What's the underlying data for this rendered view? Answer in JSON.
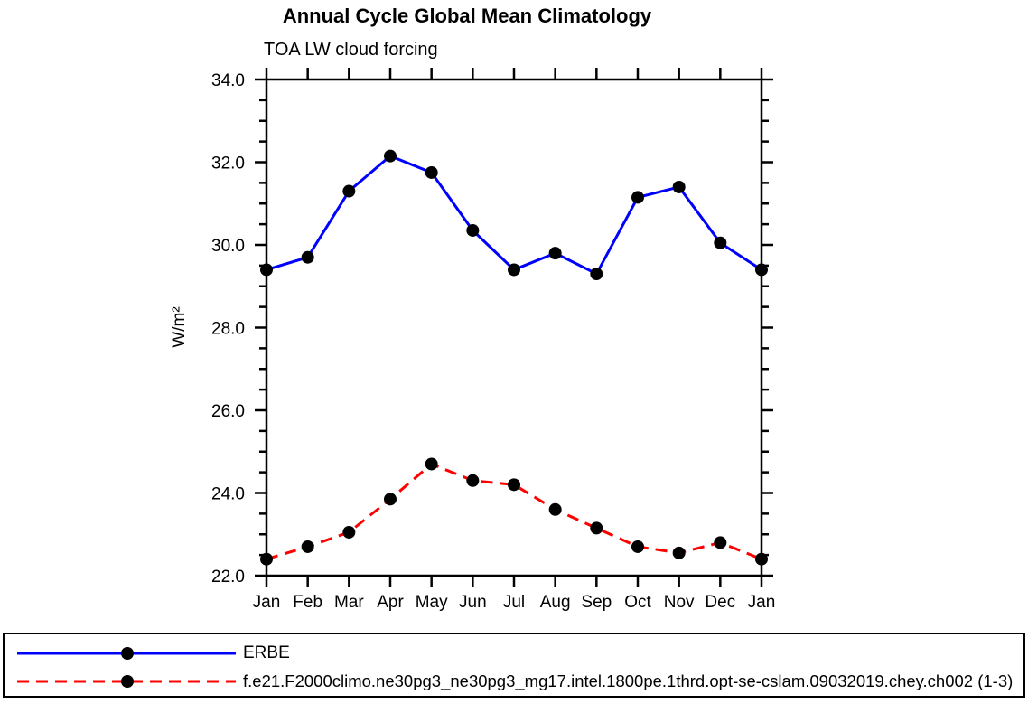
{
  "page": {
    "background": "#ffffff"
  },
  "chart_data": {
    "type": "line",
    "title": "Annual Cycle Global Mean Climatology",
    "subtitle": "TOA LW cloud forcing",
    "ylabel": "W/m²",
    "xlabel": "",
    "categories": [
      "Jan",
      "Feb",
      "Mar",
      "Apr",
      "May",
      "Jun",
      "Jul",
      "Aug",
      "Sep",
      "Oct",
      "Nov",
      "Dec",
      "Jan"
    ],
    "ylim": [
      22.0,
      34.0
    ],
    "ytick_interval_major": 2.0,
    "ytick_interval_minor": 0.5,
    "ytick_labels": [
      "22.0",
      "24.0",
      "26.0",
      "28.0",
      "30.0",
      "32.0",
      "34.0"
    ],
    "grid": false,
    "legend_position": "bottom-outside",
    "axis_color": "#000000",
    "marker_color": "#000000",
    "series": [
      {
        "name": "ERBE",
        "color": "#0000ff",
        "line_style": "solid",
        "marker": "circle",
        "values": [
          29.4,
          29.7,
          31.3,
          32.15,
          31.75,
          30.35,
          29.4,
          29.8,
          29.3,
          31.15,
          31.4,
          30.05,
          29.4
        ]
      },
      {
        "name": "f.e21.F2000climo.ne30pg3_ne30pg3_mg17.intel.1800pe.1thrd.opt-se-cslam.09032019.chey.ch002 (1-3)",
        "color": "#ff0000",
        "line_style": "dashed",
        "marker": "circle",
        "values": [
          22.4,
          22.7,
          23.05,
          23.85,
          24.7,
          24.3,
          24.2,
          23.6,
          23.15,
          22.7,
          22.55,
          22.8,
          22.4
        ]
      }
    ]
  }
}
